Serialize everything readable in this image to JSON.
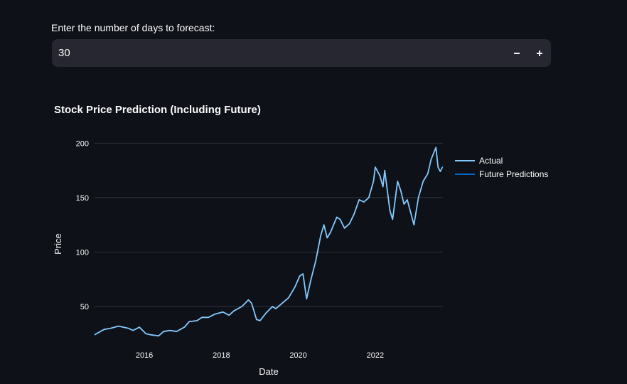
{
  "forecast_input": {
    "label": "Enter the number of days to forecast:",
    "value": "30",
    "decrement_label": "−",
    "increment_label": "+"
  },
  "chart_data": {
    "type": "line",
    "title": "Stock Price Prediction (Including Future)",
    "xlabel": "Date",
    "ylabel": "Price",
    "xlim": [
      "2014-09-15",
      "2023-10-05"
    ],
    "ylim": [
      18,
      210
    ],
    "x_ticks": [
      "2016",
      "2018",
      "2020",
      "2022"
    ],
    "y_ticks": [
      50,
      100,
      150,
      200
    ],
    "grid": true,
    "legend": "top-right",
    "series": [
      {
        "name": "Actual",
        "color": "#83c9ff",
        "x": [
          "2014-09-15",
          "2014-12-15",
          "2015-02-15",
          "2015-05-01",
          "2015-08-01",
          "2015-09-15",
          "2015-11-15",
          "2016-01-15",
          "2016-03-01",
          "2016-05-15",
          "2016-07-01",
          "2016-09-01",
          "2016-11-01",
          "2017-01-15",
          "2017-03-01",
          "2017-05-15",
          "2017-07-01",
          "2017-09-01",
          "2017-11-01",
          "2018-01-15",
          "2018-03-15",
          "2018-05-01",
          "2018-07-15",
          "2018-09-15",
          "2018-10-15",
          "2018-12-01",
          "2019-01-03",
          "2019-03-01",
          "2019-05-01",
          "2019-06-01",
          "2019-08-01",
          "2019-10-01",
          "2019-12-01",
          "2020-01-15",
          "2020-02-15",
          "2020-03-20",
          "2020-05-01",
          "2020-06-15",
          "2020-08-01",
          "2020-09-01",
          "2020-10-01",
          "2020-11-01",
          "2021-01-01",
          "2021-02-01",
          "2021-03-15",
          "2021-05-01",
          "2021-06-15",
          "2021-08-01",
          "2021-09-15",
          "2021-11-01",
          "2021-12-15",
          "2022-01-01",
          "2022-02-15",
          "2022-03-15",
          "2022-04-01",
          "2022-05-20",
          "2022-06-15",
          "2022-08-01",
          "2022-09-01",
          "2022-10-01",
          "2022-11-01",
          "2023-01-03",
          "2023-02-15",
          "2023-04-01",
          "2023-05-15",
          "2023-06-15",
          "2023-07-31",
          "2023-08-20",
          "2023-09-10",
          "2023-10-01"
        ],
        "y": [
          24,
          29,
          30,
          32,
          30,
          28,
          31,
          25,
          24,
          23,
          27,
          28,
          27,
          31,
          36,
          37,
          40,
          40,
          43,
          45,
          42,
          46,
          50,
          56,
          53,
          38,
          37,
          44,
          50,
          48,
          53,
          58,
          68,
          78,
          80,
          57,
          75,
          92,
          115,
          125,
          113,
          118,
          132,
          130,
          122,
          126,
          135,
          148,
          146,
          150,
          165,
          178,
          170,
          160,
          175,
          138,
          130,
          165,
          156,
          144,
          148,
          125,
          150,
          165,
          172,
          185,
          196,
          178,
          174,
          178
        ]
      },
      {
        "name": "Future Predictions",
        "color": "#0068c9",
        "x": [
          "2023-10-01",
          "2023-10-05"
        ],
        "y": [
          178,
          179
        ]
      }
    ]
  }
}
